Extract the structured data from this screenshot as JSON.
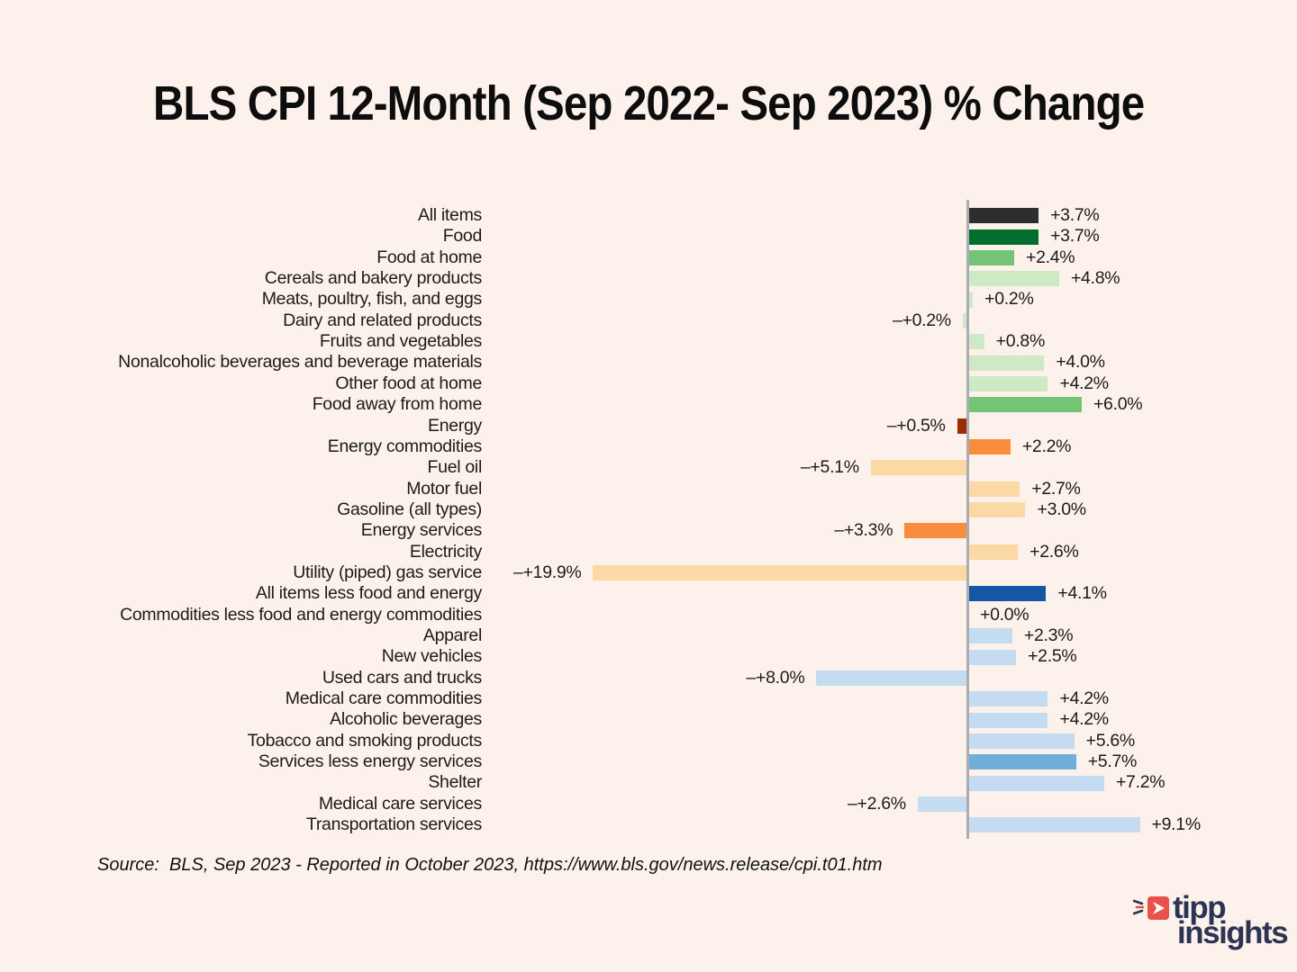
{
  "title": "BLS CPI 12-Month (Sep 2022- Sep 2023) % Change",
  "source": "Source:  BLS, Sep 2023 - Reported in October 2023, https://www.bls.gov/news.release/cpi.t01.htm",
  "logo": {
    "line1": "tipp",
    "line2": "insights",
    "red": "#E8524A",
    "navy": "#2D3354"
  },
  "colors": {
    "background": "#FDF2EB",
    "axis": "#ABABB3",
    "dark_gray": "#2E2E2E",
    "dark_green": "#016E2E",
    "medium_green": "#74C476",
    "light_green": "#CDE9C5",
    "dark_red": "#9E2B01",
    "orange": "#F98C3D",
    "light_orange": "#FBD8A4",
    "dark_blue": "#1458A5",
    "medium_blue": "#70AFDA",
    "light_blue": "#C5DBEF"
  },
  "chart_data": {
    "type": "bar",
    "orientation": "horizontal",
    "unit": "percent",
    "axis": "zero-baseline vertical, negatives extend left",
    "categories": [
      "All items",
      "Food",
      "Food at home",
      "Cereals and bakery products",
      "Meats, poultry, fish, and eggs",
      "Dairy and related products",
      "Fruits and vegetables",
      "Nonalcoholic beverages and beverage materials",
      "Other food at home",
      "Food away from home",
      "Energy",
      "Energy commodities",
      "Fuel oil",
      "Motor fuel",
      "Gasoline (all types)",
      "Energy services",
      "Electricity",
      "Utility (piped) gas service",
      "All items less food and energy",
      "Commodities less food and energy commodities",
      "Apparel",
      "New vehicles",
      "Used cars and trucks",
      "Medical care commodities",
      "Alcoholic beverages",
      "Tobacco and smoking products",
      "Services less energy services",
      "Shelter",
      "Medical care services",
      "Transportation services"
    ],
    "values": [
      3.7,
      3.7,
      2.4,
      4.8,
      0.2,
      -0.2,
      0.8,
      4.0,
      4.2,
      6.0,
      -0.5,
      2.2,
      -5.1,
      2.7,
      3.0,
      -3.3,
      2.6,
      -19.9,
      4.1,
      0.0,
      2.3,
      2.5,
      -8.0,
      4.2,
      4.2,
      5.6,
      5.7,
      7.2,
      -2.6,
      9.1
    ],
    "value_labels": [
      "+3.7%",
      "+3.7%",
      "+2.4%",
      "+4.8%",
      "+0.2%",
      "–+0.2%",
      "+0.8%",
      "+4.0%",
      "+4.2%",
      "+6.0%",
      "–+0.5%",
      "+2.2%",
      "–+5.1%",
      "+2.7%",
      "+3.0%",
      "–+3.3%",
      "+2.6%",
      "–+19.9%",
      "+4.1%",
      "+0.0%",
      "+2.3%",
      "+2.5%",
      "–+8.0%",
      "+4.2%",
      "+4.2%",
      "+5.6%",
      "+5.7%",
      "+7.2%",
      "–+2.6%",
      "+9.1%"
    ],
    "bar_colors": [
      "#2E2E2E",
      "#016E2E",
      "#74C476",
      "#CDE9C5",
      "#CDE9C5",
      "#CDE9C5",
      "#CDE9C5",
      "#CDE9C5",
      "#CDE9C5",
      "#74C476",
      "#9E2B01",
      "#F98C3D",
      "#FBD8A4",
      "#FBD8A4",
      "#FBD8A4",
      "#F98C3D",
      "#FBD8A4",
      "#FBD8A4",
      "#1458A5",
      "#C5DBEF",
      "#C5DBEF",
      "#C5DBEF",
      "#C5DBEF",
      "#C5DBEF",
      "#C5DBEF",
      "#C5DBEF",
      "#70AFDA",
      "#C5DBEF",
      "#C5DBEF",
      "#C5DBEF"
    ]
  }
}
